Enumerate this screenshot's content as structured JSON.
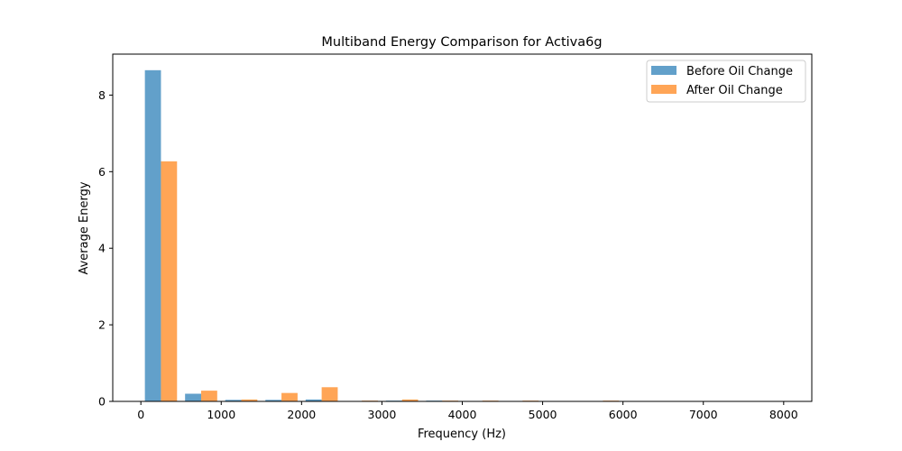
{
  "chart_data": {
    "type": "bar",
    "title": "Multiband Energy Comparison for Activa6g",
    "xlabel": "Frequency (Hz)",
    "ylabel": "Average Energy",
    "xlim": [
      -350,
      8350
    ],
    "ylim": [
      0,
      9.07
    ],
    "xticks": [
      0,
      1000,
      2000,
      3000,
      4000,
      5000,
      6000,
      7000,
      8000
    ],
    "xtick_labels": [
      "0",
      "1000",
      "2000",
      "3000",
      "4000",
      "5000",
      "6000",
      "7000",
      "8000"
    ],
    "yticks": [
      0,
      2,
      4,
      6,
      8
    ],
    "ytick_labels": [
      "0",
      "2",
      "4",
      "6",
      "8"
    ],
    "grid": false,
    "legend_position": "top-right",
    "band_centers": [
      250,
      750,
      1250,
      1750,
      2250,
      2750,
      3250,
      3750,
      4250,
      4750,
      5250,
      5750,
      6250,
      6750,
      7250,
      7750
    ],
    "bar_width": 200,
    "series": [
      {
        "name": "Before Oil Change",
        "color": "#1f77b4",
        "opacity": 0.7,
        "values": [
          8.65,
          0.2,
          0.04,
          0.04,
          0.05,
          0.01,
          0.02,
          0.02,
          0.01,
          0.01,
          0.0,
          0.01,
          0.0,
          0.0,
          0.0,
          0.0
        ]
      },
      {
        "name": "After Oil Change",
        "color": "#ff7f0e",
        "opacity": 0.7,
        "values": [
          6.27,
          0.28,
          0.05,
          0.22,
          0.37,
          0.02,
          0.05,
          0.02,
          0.02,
          0.02,
          0.0,
          0.02,
          0.0,
          0.0,
          0.0,
          0.0
        ]
      }
    ]
  }
}
